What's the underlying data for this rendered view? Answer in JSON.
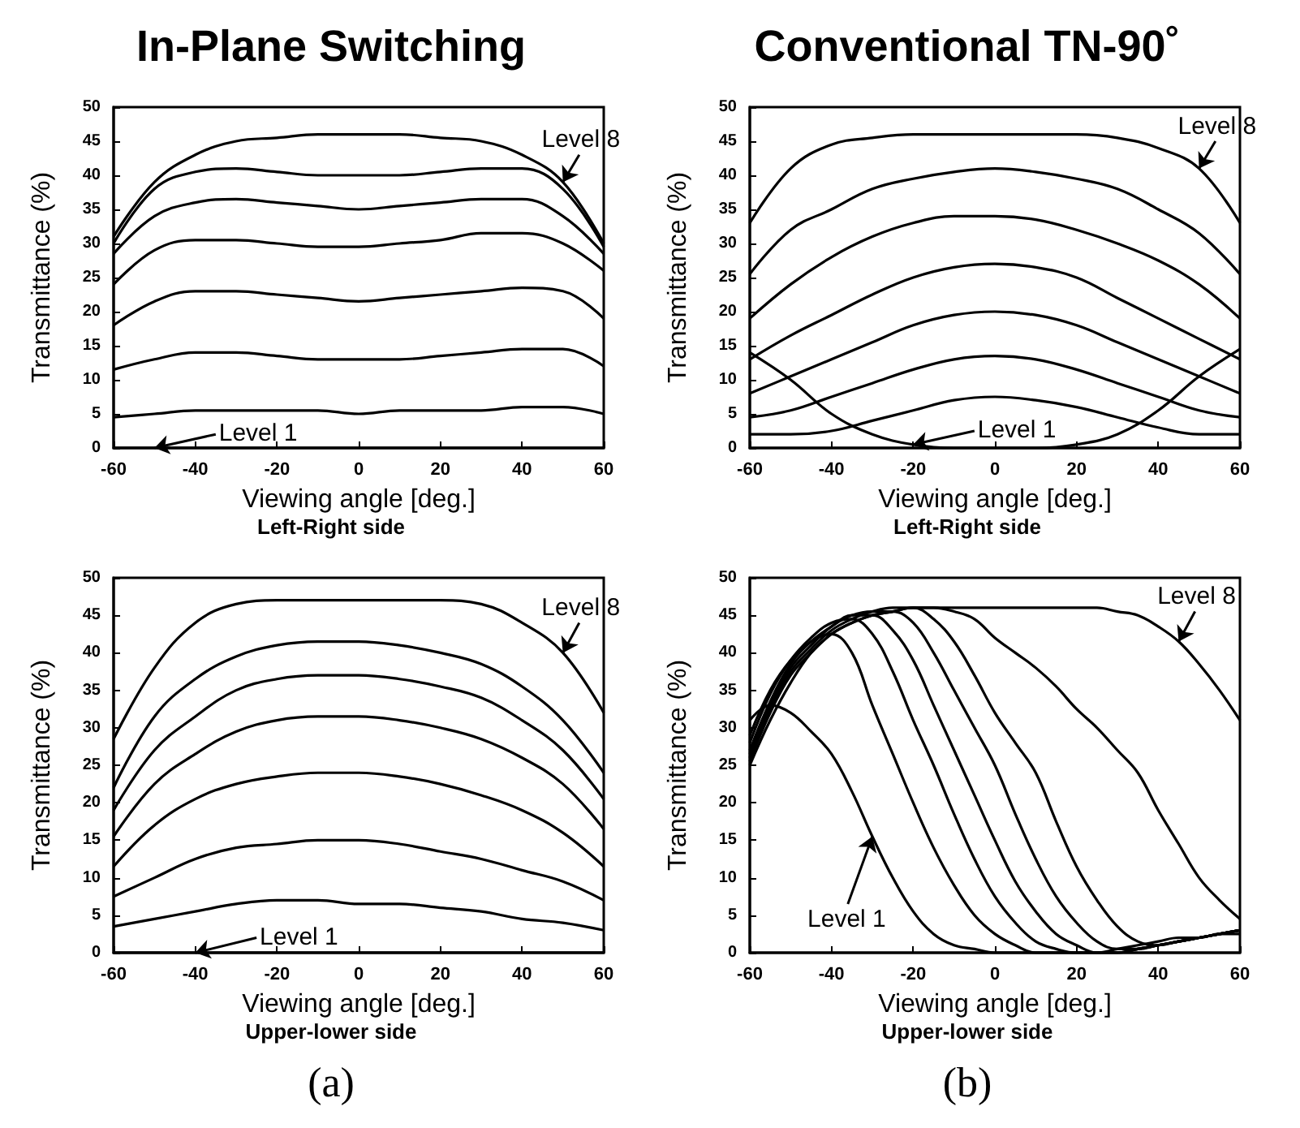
{
  "chart_data": [
    {
      "type": "line",
      "title": "In-Plane Switching",
      "subtitle": "Left-Right side",
      "xlabel": "Viewing angle [deg.]",
      "ylabel": "Transmittance (%)",
      "marker": "none",
      "xlim": [
        -60,
        60
      ],
      "ylim": [
        0,
        50
      ],
      "xticks": [
        -60,
        -40,
        -20,
        0,
        20,
        40,
        60
      ],
      "yticks": [
        0,
        5,
        10,
        15,
        20,
        25,
        30,
        35,
        40,
        45,
        50
      ],
      "x": [
        -60,
        -50,
        -40,
        -30,
        -20,
        -10,
        0,
        10,
        20,
        30,
        40,
        50,
        60
      ],
      "series": [
        {
          "color": "#000000",
          "values": [
            31,
            39,
            43,
            45,
            45.5,
            46,
            46,
            46,
            45.5,
            45,
            43,
            39,
            30
          ]
        },
        {
          "color": "#000000",
          "values": [
            30,
            38,
            40.5,
            41,
            40.5,
            40,
            40,
            40,
            40.5,
            41,
            41,
            38,
            29.5
          ]
        },
        {
          "color": "#000000",
          "values": [
            28.5,
            34,
            36,
            36.5,
            36,
            35.5,
            35,
            35.5,
            36,
            36.5,
            36.5,
            34,
            28.5
          ]
        },
        {
          "color": "#000000",
          "values": [
            24,
            29,
            30.5,
            30.5,
            30,
            29.5,
            29.5,
            30,
            30.5,
            31.5,
            31.5,
            30,
            26
          ]
        },
        {
          "color": "#000000",
          "values": [
            18,
            21.5,
            23,
            23,
            22.5,
            22,
            21.5,
            22,
            22.5,
            23,
            23.5,
            23,
            19
          ]
        },
        {
          "color": "#000000",
          "values": [
            11.5,
            13,
            14,
            14,
            13.5,
            13,
            13,
            13,
            13.5,
            14,
            14.5,
            14.5,
            12
          ]
        },
        {
          "color": "#000000",
          "values": [
            4.5,
            5,
            5.5,
            5.5,
            5.5,
            5.5,
            5,
            5.5,
            5.5,
            5.5,
            6,
            6,
            5
          ]
        },
        {
          "color": "#000000",
          "values": [
            0,
            0,
            0,
            0,
            0,
            0,
            0,
            0,
            0,
            0,
            0,
            0,
            0
          ]
        }
      ],
      "annotations": [
        {
          "text": "Level 8",
          "x": 50,
          "y": 39
        },
        {
          "text": "Level 1",
          "x": -50,
          "y": 0
        }
      ]
    },
    {
      "type": "line",
      "title": "Conventional TN-90˚",
      "subtitle": "Left-Right side",
      "xlabel": "Viewing angle [deg.]",
      "ylabel": "Transmittance (%)",
      "marker": "none",
      "xlim": [
        -60,
        60
      ],
      "ylim": [
        0,
        50
      ],
      "xticks": [
        -60,
        -40,
        -20,
        0,
        20,
        40,
        60
      ],
      "yticks": [
        0,
        5,
        10,
        15,
        20,
        25,
        30,
        35,
        40,
        45,
        50
      ],
      "x": [
        -60,
        -50,
        -40,
        -30,
        -20,
        -10,
        0,
        10,
        20,
        30,
        40,
        50,
        60
      ],
      "series": [
        {
          "color": "#000000",
          "values": [
            33,
            41,
            44.5,
            45.5,
            46,
            46,
            46,
            46,
            46,
            45.5,
            44,
            41,
            33
          ]
        },
        {
          "color": "#000000",
          "values": [
            25.5,
            32,
            35,
            38,
            39.5,
            40.5,
            41,
            40.5,
            39.5,
            38,
            35,
            31.5,
            25.5
          ]
        },
        {
          "color": "#000000",
          "values": [
            19,
            24,
            28,
            31,
            33,
            34,
            34,
            33.5,
            32,
            30,
            27.5,
            24,
            19
          ]
        },
        {
          "color": "#000000",
          "values": [
            13,
            16.5,
            19.5,
            22.5,
            25,
            26.5,
            27,
            26.5,
            25,
            22,
            19,
            16,
            13
          ]
        },
        {
          "color": "#000000",
          "values": [
            8,
            10.5,
            13,
            15.5,
            18,
            19.5,
            20,
            19.5,
            18,
            15.5,
            13,
            10.5,
            8
          ]
        },
        {
          "color": "#000000",
          "values": [
            4.5,
            5.5,
            7.5,
            9.5,
            11.5,
            13,
            13.5,
            13,
            11.5,
            9.5,
            7.5,
            5.5,
            4.5
          ]
        },
        {
          "color": "#000000",
          "values": [
            2,
            2,
            2.5,
            4,
            5.5,
            7,
            7.5,
            7,
            6,
            4.5,
            3,
            2,
            2
          ]
        },
        {
          "color": "#000000",
          "values": [
            14,
            10,
            5,
            2,
            0.5,
            0,
            0,
            0,
            0.5,
            2,
            5.5,
            10.5,
            14.5
          ]
        }
      ],
      "annotations": [
        {
          "text": "Level 8",
          "x": 50,
          "y": 41
        },
        {
          "text": "Level 1",
          "x": -20,
          "y": 0.5
        }
      ]
    },
    {
      "type": "line",
      "subtitle": "Upper-lower side",
      "xlabel": "Viewing angle [deg.]",
      "ylabel": "Transmittance (%)",
      "marker": "none",
      "xlim": [
        -60,
        60
      ],
      "ylim": [
        0,
        50
      ],
      "xticks": [
        -60,
        -40,
        -20,
        0,
        20,
        40,
        60
      ],
      "yticks": [
        0,
        5,
        10,
        15,
        20,
        25,
        30,
        35,
        40,
        45,
        50
      ],
      "x": [
        -60,
        -50,
        -40,
        -30,
        -20,
        -10,
        0,
        10,
        20,
        30,
        40,
        50,
        60
      ],
      "series": [
        {
          "color": "#000000",
          "values": [
            28.5,
            38,
            44,
            46.5,
            47,
            47,
            47,
            47,
            47,
            46.5,
            44,
            40,
            32
          ]
        },
        {
          "color": "#000000",
          "values": [
            22,
            31.5,
            36.5,
            39.5,
            41,
            41.5,
            41.5,
            41,
            40,
            38.5,
            35.5,
            31,
            24
          ]
        },
        {
          "color": "#000000",
          "values": [
            19,
            27,
            31.5,
            35,
            36.5,
            37,
            37,
            36.5,
            35.5,
            34,
            31,
            27,
            20.5
          ]
        },
        {
          "color": "#000000",
          "values": [
            15.5,
            22.5,
            26.5,
            29.5,
            31,
            31.5,
            31.5,
            31,
            30,
            28.5,
            26,
            22.5,
            16.5
          ]
        },
        {
          "color": "#000000",
          "values": [
            11.5,
            17,
            20.5,
            22.5,
            23.5,
            24,
            24,
            23.5,
            22.5,
            21,
            19,
            16,
            11.5
          ]
        },
        {
          "color": "#000000",
          "values": [
            7.5,
            10,
            12.5,
            14,
            14.5,
            15,
            15,
            14.5,
            13.5,
            12.5,
            11,
            9.5,
            7
          ]
        },
        {
          "color": "#000000",
          "values": [
            3.5,
            4.5,
            5.5,
            6.5,
            7,
            7,
            6.5,
            6.5,
            6,
            5.5,
            4.5,
            4,
            3
          ]
        },
        {
          "color": "#000000",
          "values": [
            0,
            0,
            0,
            0,
            0,
            0,
            0,
            0,
            0,
            0,
            0,
            0,
            0
          ]
        }
      ],
      "annotations": [
        {
          "text": "Level 8",
          "x": 50,
          "y": 40
        },
        {
          "text": "Level 1",
          "x": -40,
          "y": 0
        },
        "(a)"
      ]
    },
    {
      "type": "line",
      "subtitle": "Upper-lower side",
      "xlabel": "Viewing angle [deg.]",
      "ylabel": "Transmittance (%)",
      "marker": "none",
      "xlim": [
        -60,
        60
      ],
      "ylim": [
        0,
        50
      ],
      "xticks": [
        -60,
        -40,
        -20,
        0,
        20,
        40,
        60
      ],
      "yticks": [
        0,
        5,
        10,
        15,
        20,
        25,
        30,
        35,
        40,
        45,
        50
      ],
      "x": [
        -60,
        -55,
        -50,
        -45,
        -40,
        -35,
        -30,
        -25,
        -20,
        -15,
        -10,
        -5,
        0,
        5,
        10,
        15,
        20,
        25,
        30,
        35,
        40,
        45,
        50,
        55,
        60
      ],
      "series": [
        {
          "color": "#000000",
          "values": [
            25,
            31,
            36,
            40,
            42.5,
            44,
            45,
            45.5,
            46,
            46,
            46,
            46,
            46,
            46,
            46,
            46,
            46,
            46,
            45.5,
            45,
            43.5,
            41.5,
            38.5,
            35,
            31
          ]
        },
        {
          "color": "#000000",
          "values": [
            25.5,
            32,
            37,
            40,
            42.5,
            44,
            45,
            45.5,
            46,
            46,
            45.5,
            44.5,
            42,
            40,
            38,
            35.5,
            32.5,
            30,
            27,
            24,
            19,
            14.5,
            10,
            7,
            4.5
          ]
        },
        {
          "color": "#000000",
          "values": [
            26,
            32.5,
            37.5,
            40.5,
            43,
            44.5,
            45.5,
            46,
            46,
            44.5,
            41.5,
            37,
            32,
            28,
            24,
            17.5,
            11.5,
            7,
            3.5,
            1.5,
            1,
            1.5,
            2,
            2.5,
            3
          ]
        },
        {
          "color": "#000000",
          "values": [
            26.5,
            33,
            38,
            41,
            43.5,
            45,
            45.5,
            45.5,
            44,
            40,
            35,
            30,
            25,
            18.5,
            12.5,
            7.5,
            4,
            1.5,
            0.5,
            0.5,
            1,
            1.5,
            2,
            2.5,
            3
          ]
        },
        {
          "color": "#000000",
          "values": [
            27,
            33.5,
            38.5,
            41.5,
            43.5,
            45,
            45,
            43,
            39,
            33,
            27,
            21,
            15,
            9.5,
            5.5,
            2.5,
            1,
            0,
            0,
            0.5,
            1,
            1.5,
            2,
            2.5,
            3
          ]
        },
        {
          "color": "#000000",
          "values": [
            28,
            34.5,
            39,
            42,
            44,
            44.5,
            42.5,
            37.5,
            31,
            25,
            18.5,
            12.5,
            7.5,
            4,
            1.5,
            0.5,
            0,
            0,
            0,
            0.5,
            1,
            1.5,
            2,
            2.5,
            3
          ]
        },
        {
          "color": "#000000",
          "values": [
            29,
            35,
            39,
            41.5,
            42.5,
            40,
            33,
            26.5,
            20,
            14,
            9,
            5,
            2.5,
            1,
            0,
            0,
            0,
            0,
            0,
            0.5,
            1,
            1.5,
            2,
            2.5,
            3
          ]
        },
        {
          "color": "#000000",
          "values": [
            31,
            33,
            32,
            29.5,
            26.5,
            21.5,
            15.5,
            10,
            5.5,
            2.5,
            1,
            0.5,
            0,
            0,
            0,
            0,
            0,
            0,
            0.5,
            1,
            1.5,
            2,
            2,
            2.5,
            2.5
          ]
        }
      ],
      "annotations": [
        {
          "text": "Level 8",
          "x": 45,
          "y": 41.5
        },
        {
          "text": "Level 1",
          "x": -30,
          "y": 15.5
        },
        "(b)"
      ]
    }
  ]
}
